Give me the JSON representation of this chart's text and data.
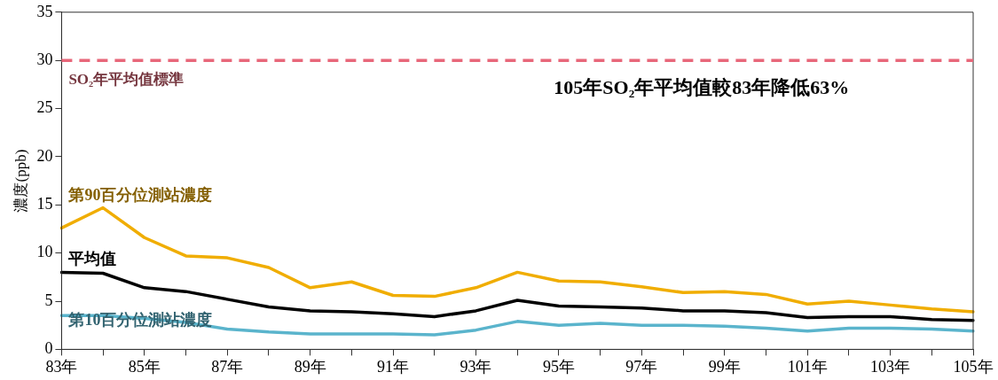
{
  "chart_data": {
    "type": "line",
    "ylabel": "濃度(ppb)",
    "categories": [
      "83年",
      null,
      "85年",
      null,
      "87年",
      null,
      "89年",
      null,
      "91年",
      null,
      "93年",
      null,
      "95年",
      null,
      "97年",
      null,
      "99年",
      null,
      "101年",
      null,
      "103年",
      null,
      "105年"
    ],
    "series": [
      {
        "name": "第90百分位測站濃度",
        "color": "#f0ad00",
        "values": [
          12.6,
          14.7,
          11.6,
          9.7,
          9.5,
          8.5,
          6.4,
          7.0,
          5.6,
          5.5,
          6.4,
          8.0,
          7.1,
          7.0,
          6.5,
          5.9,
          6.0,
          5.7,
          4.7,
          5.0,
          4.6,
          4.2,
          3.9
        ]
      },
      {
        "name": "平均值",
        "color": "#000000",
        "values": [
          8.0,
          7.9,
          6.4,
          6.0,
          5.2,
          4.4,
          4.0,
          3.9,
          3.7,
          3.4,
          4.0,
          5.1,
          4.5,
          4.4,
          4.3,
          4.0,
          4.0,
          3.8,
          3.3,
          3.4,
          3.4,
          3.1,
          3.0
        ]
      },
      {
        "name": "第10百分位測站濃度",
        "color": "#5ab4cc",
        "values": [
          3.5,
          3.5,
          3.2,
          2.8,
          2.1,
          1.8,
          1.6,
          1.6,
          1.6,
          1.5,
          2.0,
          2.9,
          2.5,
          2.7,
          2.5,
          2.5,
          2.4,
          2.2,
          1.9,
          2.2,
          2.2,
          2.1,
          1.9
        ]
      }
    ],
    "ylim": [
      0,
      35
    ],
    "yticks": [
      0,
      5,
      10,
      15,
      20,
      25,
      30,
      35
    ],
    "ref_lines": [
      {
        "axis": "y",
        "value": 30,
        "label": "SO₂年平均值標準",
        "color": "#e8677a",
        "line_style": "dashed"
      }
    ],
    "annotations": [
      "105年SO₂年平均值較83年降低63%"
    ],
    "grid": false,
    "legend": false,
    "marker": "none",
    "line_style": "solid"
  }
}
